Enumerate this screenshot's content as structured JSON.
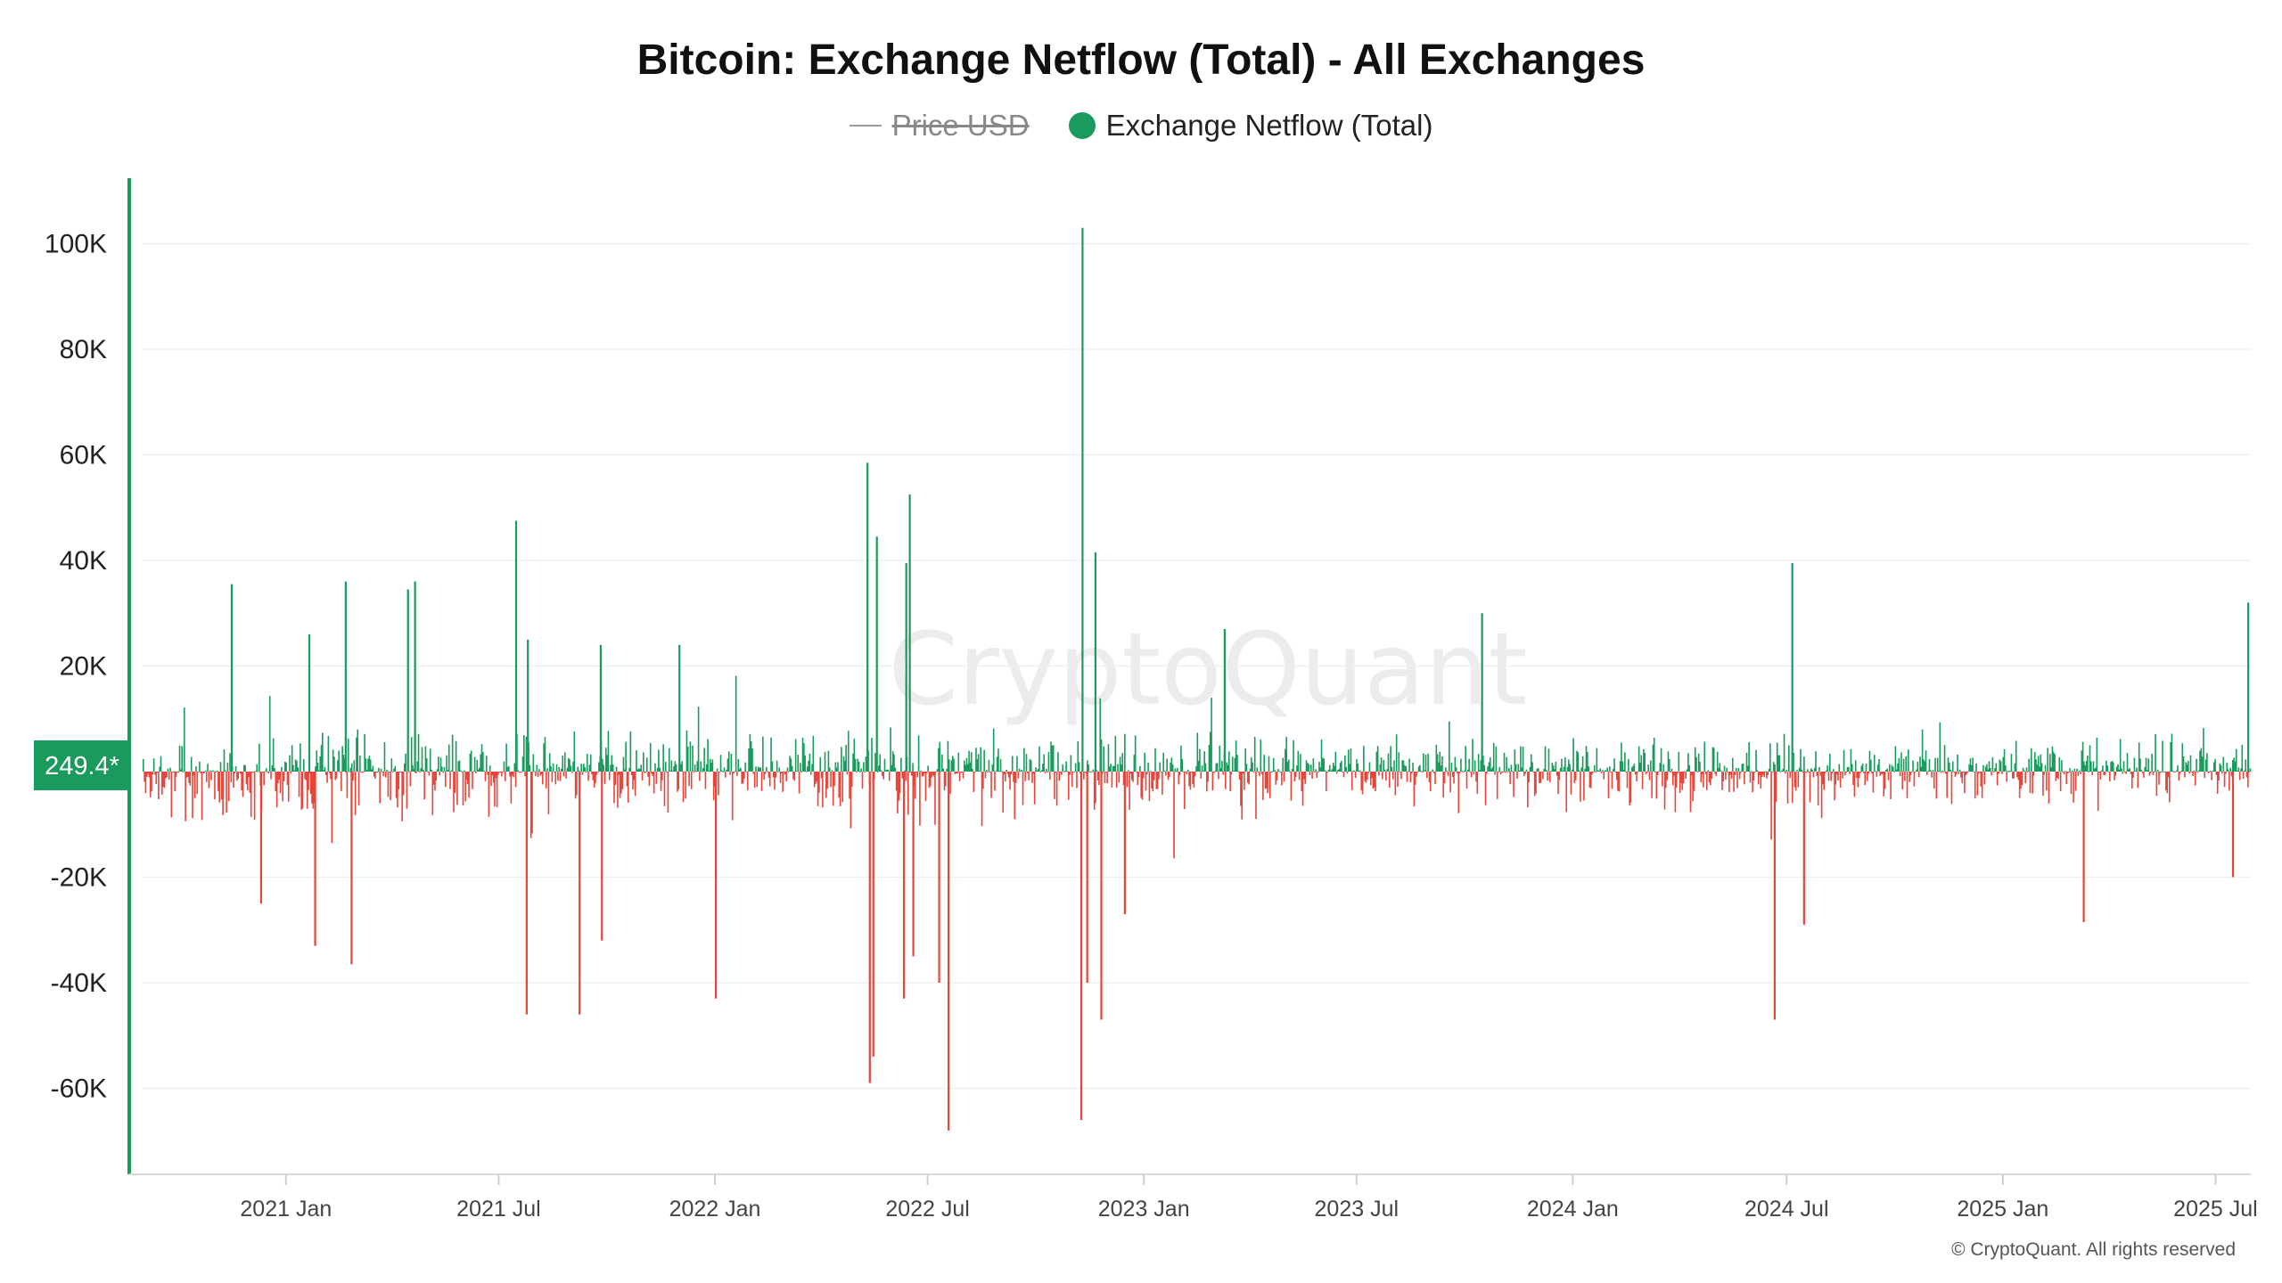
{
  "title": "Bitcoin: Exchange Netflow (Total) - All Exchanges",
  "watermark": "CryptoQuant",
  "copyright": "© CryptoQuant. All rights reserved",
  "colors": {
    "positive": "#1a9a5c",
    "negative": "#e8443a",
    "axis_accent": "#1a9a5c",
    "price": "#9a9a9a"
  },
  "legend": [
    {
      "label": "Price USD",
      "symbol": "line",
      "disabled": true
    },
    {
      "label": "Exchange Netflow (Total)",
      "symbol": "dot",
      "disabled": false
    }
  ],
  "current_value_label": "249.4*",
  "chart_data": {
    "type": "bar",
    "series_name": "Exchange Netflow (Total)",
    "x_start": "2020-09-01",
    "x_end": "2025-07-31",
    "ylim": [
      -77000,
      112000
    ],
    "yticks": [
      -60000,
      -40000,
      -20000,
      20000,
      40000,
      60000,
      80000,
      100000
    ],
    "ytick_labels": [
      "-60K",
      "-40K",
      "-20K",
      "20K",
      "40K",
      "60K",
      "80K",
      "100K"
    ],
    "xticks": [
      "2021-01-01",
      "2021-07-01",
      "2022-01-01",
      "2022-07-01",
      "2023-01-01",
      "2023-07-01",
      "2024-01-01",
      "2024-07-01",
      "2025-01-01",
      "2025-07-01"
    ],
    "xtick_labels": [
      "2021 Jan",
      "2021 Jul",
      "2022 Jan",
      "2022 Jul",
      "2023 Jan",
      "2023 Jul",
      "2024 Jan",
      "2024 Jul",
      "2025 Jan",
      "2025 Jul"
    ],
    "grid": true,
    "last_value": 249.4,
    "notable_points": [
      {
        "date": "2020-11-15",
        "value": 35500
      },
      {
        "date": "2020-12-10",
        "value": -25000
      },
      {
        "date": "2021-01-20",
        "value": 26000
      },
      {
        "date": "2021-01-25",
        "value": -33000
      },
      {
        "date": "2021-02-20",
        "value": 36000
      },
      {
        "date": "2021-02-25",
        "value": -36500
      },
      {
        "date": "2021-04-14",
        "value": 34500
      },
      {
        "date": "2021-04-20",
        "value": 36000
      },
      {
        "date": "2021-07-15",
        "value": 47500
      },
      {
        "date": "2021-07-24",
        "value": -46000
      },
      {
        "date": "2021-07-25",
        "value": 25000
      },
      {
        "date": "2021-09-07",
        "value": -46000
      },
      {
        "date": "2021-09-25",
        "value": 24000
      },
      {
        "date": "2021-09-26",
        "value": -32000
      },
      {
        "date": "2021-12-01",
        "value": 24000
      },
      {
        "date": "2022-01-01",
        "value": -43000
      },
      {
        "date": "2022-05-10",
        "value": 58500
      },
      {
        "date": "2022-05-12",
        "value": -59000
      },
      {
        "date": "2022-05-15",
        "value": -54000
      },
      {
        "date": "2022-05-18",
        "value": 44500
      },
      {
        "date": "2022-06-10",
        "value": -43000
      },
      {
        "date": "2022-06-12",
        "value": 39500
      },
      {
        "date": "2022-06-15",
        "value": 52500
      },
      {
        "date": "2022-06-18",
        "value": -35000
      },
      {
        "date": "2022-07-10",
        "value": -40000
      },
      {
        "date": "2022-07-18",
        "value": -68000
      },
      {
        "date": "2022-11-08",
        "value": -66000
      },
      {
        "date": "2022-11-09",
        "value": 103000
      },
      {
        "date": "2022-11-13",
        "value": -40000
      },
      {
        "date": "2022-11-20",
        "value": 41500
      },
      {
        "date": "2022-11-25",
        "value": -47000
      },
      {
        "date": "2022-12-15",
        "value": -27000
      },
      {
        "date": "2023-03-10",
        "value": 27000
      },
      {
        "date": "2023-10-15",
        "value": 30000
      },
      {
        "date": "2024-06-20",
        "value": -47000
      },
      {
        "date": "2024-07-05",
        "value": 39500
      },
      {
        "date": "2024-07-15",
        "value": -29000
      },
      {
        "date": "2025-03-10",
        "value": -28500
      },
      {
        "date": "2025-07-15",
        "value": -20000
      },
      {
        "date": "2025-07-28",
        "value": 32000
      }
    ]
  }
}
